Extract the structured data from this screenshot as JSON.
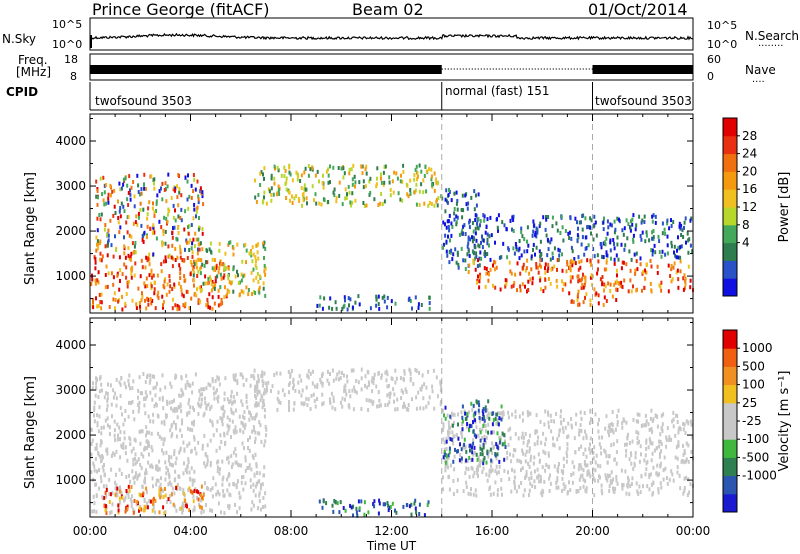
{
  "header": {
    "station": "Prince George (fitACF)",
    "beam": "Beam 02",
    "date": "01/Oct/2014"
  },
  "noise_panel": {
    "left_label": "N.Sky",
    "left_ticks": [
      "10^5",
      "10^0"
    ],
    "right_ticks": [
      "10^5",
      "10^0"
    ],
    "right_label": "N.Search",
    "right_key": "........"
  },
  "freq_panel": {
    "label_line1": "Freq.",
    "label_line2": "[MHz]",
    "left_ticks": [
      "18",
      "8"
    ],
    "right_ticks": [
      "60",
      "0"
    ],
    "right_label": "Nave",
    "right_key": "...."
  },
  "cpid_panel": {
    "label": "CPID",
    "segments": [
      {
        "name": "twofsound 3503",
        "start_hour": 0,
        "end_hour": 14
      },
      {
        "name": "normal (fast) 151",
        "start_hour": 14,
        "end_hour": 20
      },
      {
        "name": "twofsound 3503",
        "start_hour": 20,
        "end_hour": 24
      }
    ]
  },
  "chart_data": [
    {
      "type": "heatmap",
      "name": "power-range-time",
      "ylabel": "Slant Range [km]",
      "yticks": [
        1000,
        2000,
        3000,
        4000
      ],
      "ylim": [
        180,
        4600
      ],
      "xlim": [
        0,
        24
      ],
      "colorbar": {
        "label": "Power [dB]",
        "ticks": [
          "28",
          "24",
          "20",
          "16",
          "12",
          "8",
          "4"
        ],
        "colors": [
          "#1010e0",
          "#2a52c8",
          "#2e7d4f",
          "#44a85a",
          "#b7d82a",
          "#f0c020",
          "#f59a10",
          "#f07010",
          "#e83010",
          "#e00000"
        ]
      },
      "regions": [
        {
          "t0": 0.0,
          "t1": 5.5,
          "r0": 300,
          "r1": 1500,
          "level": "high"
        },
        {
          "t0": 0.2,
          "t1": 4.5,
          "r0": 1500,
          "r1": 3300,
          "level": "mixed"
        },
        {
          "t0": 4.0,
          "t1": 7.0,
          "r0": 600,
          "r1": 1800,
          "level": "mid"
        },
        {
          "t0": 6.5,
          "t1": 14.0,
          "r0": 2600,
          "r1": 3500,
          "level": "mid"
        },
        {
          "t0": 9.0,
          "t1": 13.5,
          "r0": 300,
          "r1": 600,
          "level": "low"
        },
        {
          "t0": 14.0,
          "t1": 15.5,
          "r0": 1200,
          "r1": 3000,
          "level": "low"
        },
        {
          "t0": 15.0,
          "t1": 24.0,
          "r0": 1400,
          "r1": 2400,
          "level": "low"
        },
        {
          "t0": 15.0,
          "t1": 24.0,
          "r0": 700,
          "r1": 1400,
          "level": "high"
        },
        {
          "t0": 19.0,
          "t1": 21.0,
          "r0": 400,
          "r1": 700,
          "level": "high"
        }
      ]
    },
    {
      "type": "heatmap",
      "name": "velocity-range-time",
      "ylabel": "Slant Range [km]",
      "yticks": [
        1000,
        2000,
        3000,
        4000
      ],
      "ylim": [
        180,
        4600
      ],
      "xlim": [
        0,
        24
      ],
      "xlabel": "Time UT",
      "xticks": [
        "00:00",
        "04:00",
        "08:00",
        "12:00",
        "16:00",
        "20:00",
        "00:00"
      ],
      "colorbar": {
        "label": "Velocity [m s⁻¹]",
        "ticks": [
          "1000",
          "500",
          "100",
          "25",
          "-25",
          "-100",
          "-500",
          "-1000"
        ],
        "colors": [
          "#1a1ad0",
          "#2a55b0",
          "#2e8050",
          "#40b840",
          "#c8c8c8",
          "#c8c8c8",
          "#f0c020",
          "#f09020",
          "#f06010",
          "#e00000"
        ]
      },
      "regions": [
        {
          "t0": 0.0,
          "t1": 7.0,
          "r0": 300,
          "r1": 3400,
          "level": "ground"
        },
        {
          "t0": 0.5,
          "t1": 4.5,
          "r0": 300,
          "r1": 900,
          "level": "away"
        },
        {
          "t0": 6.5,
          "t1": 14.0,
          "r0": 2600,
          "r1": 3500,
          "level": "ground"
        },
        {
          "t0": 9.0,
          "t1": 13.5,
          "r0": 250,
          "r1": 600,
          "level": "toward"
        },
        {
          "t0": 14.0,
          "t1": 24.0,
          "r0": 700,
          "r1": 2600,
          "level": "ground"
        },
        {
          "t0": 14.0,
          "t1": 16.5,
          "r0": 1400,
          "r1": 2800,
          "level": "toward"
        }
      ]
    }
  ],
  "colors": {
    "foreground": "#000000",
    "dashed_separator": "#aaaaaa"
  }
}
